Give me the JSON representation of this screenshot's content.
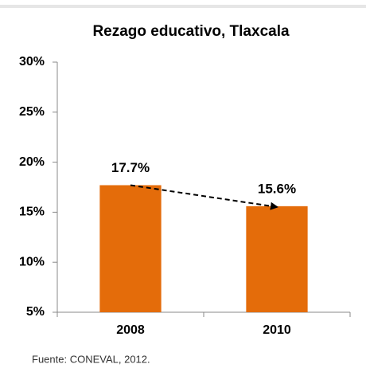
{
  "chart_data": {
    "type": "bar",
    "title": "Rezago educativo, Tlaxcala",
    "categories": [
      "2008",
      "2010"
    ],
    "values": [
      17.7,
      15.6
    ],
    "value_labels": [
      "17.7%",
      "15.6%"
    ],
    "color": "#E46C0A",
    "ylim": [
      5,
      30
    ],
    "yticks": [
      {
        "value": 5,
        "label": "5%"
      },
      {
        "value": 10,
        "label": "10%"
      },
      {
        "value": 15,
        "label": "15%"
      },
      {
        "value": 20,
        "label": "20%"
      },
      {
        "value": 25,
        "label": "25%"
      },
      {
        "value": 30,
        "label": "30%"
      }
    ],
    "note": "Fuente: CONEVAL, 2012."
  }
}
